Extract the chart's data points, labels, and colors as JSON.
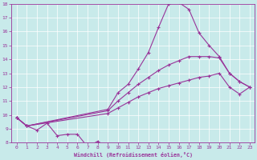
{
  "xlabel": "Windchill (Refroidissement éolien,°C)",
  "background_color": "#c8eaea",
  "line_color": "#993399",
  "xlim": [
    -0.5,
    23.5
  ],
  "ylim": [
    8,
    18
  ],
  "xticks": [
    0,
    1,
    2,
    3,
    4,
    5,
    6,
    7,
    8,
    9,
    10,
    11,
    12,
    13,
    14,
    15,
    16,
    17,
    18,
    19,
    20,
    21,
    22,
    23
  ],
  "yticks": [
    8,
    9,
    10,
    11,
    12,
    13,
    14,
    15,
    16,
    17,
    18
  ],
  "curve_zigzag_x": [
    0,
    1,
    2,
    3,
    4,
    5,
    6,
    7,
    8
  ],
  "curve_zigzag_y": [
    9.8,
    9.2,
    8.9,
    9.4,
    8.5,
    8.6,
    8.6,
    7.7,
    8.1
  ],
  "curve_bottom_x": [
    0,
    1,
    9,
    10,
    11,
    12,
    13,
    14,
    15,
    16,
    17,
    18,
    19,
    20,
    21,
    22,
    23
  ],
  "curve_bottom_y": [
    9.8,
    9.2,
    10.1,
    10.5,
    10.9,
    11.3,
    11.6,
    11.9,
    12.1,
    12.3,
    12.5,
    12.7,
    12.8,
    13.0,
    12.0,
    11.5,
    12.0
  ],
  "curve_mid_x": [
    0,
    1,
    9,
    10,
    11,
    12,
    13,
    14,
    15,
    16,
    17,
    18,
    19,
    20,
    21,
    22,
    23
  ],
  "curve_mid_y": [
    9.8,
    9.2,
    10.3,
    11.0,
    11.6,
    12.2,
    12.7,
    13.2,
    13.6,
    13.9,
    14.2,
    14.2,
    14.2,
    14.1,
    13.0,
    12.4,
    12.0
  ],
  "curve_high_x": [
    0,
    1,
    9,
    10,
    11,
    12,
    13,
    14,
    15,
    16,
    17,
    18,
    19,
    20,
    21,
    22,
    23
  ],
  "curve_high_y": [
    9.8,
    9.2,
    10.4,
    11.6,
    12.2,
    13.3,
    14.5,
    16.3,
    18.0,
    18.1,
    17.6,
    15.9,
    15.0,
    14.2,
    13.0,
    12.4,
    12.0
  ]
}
